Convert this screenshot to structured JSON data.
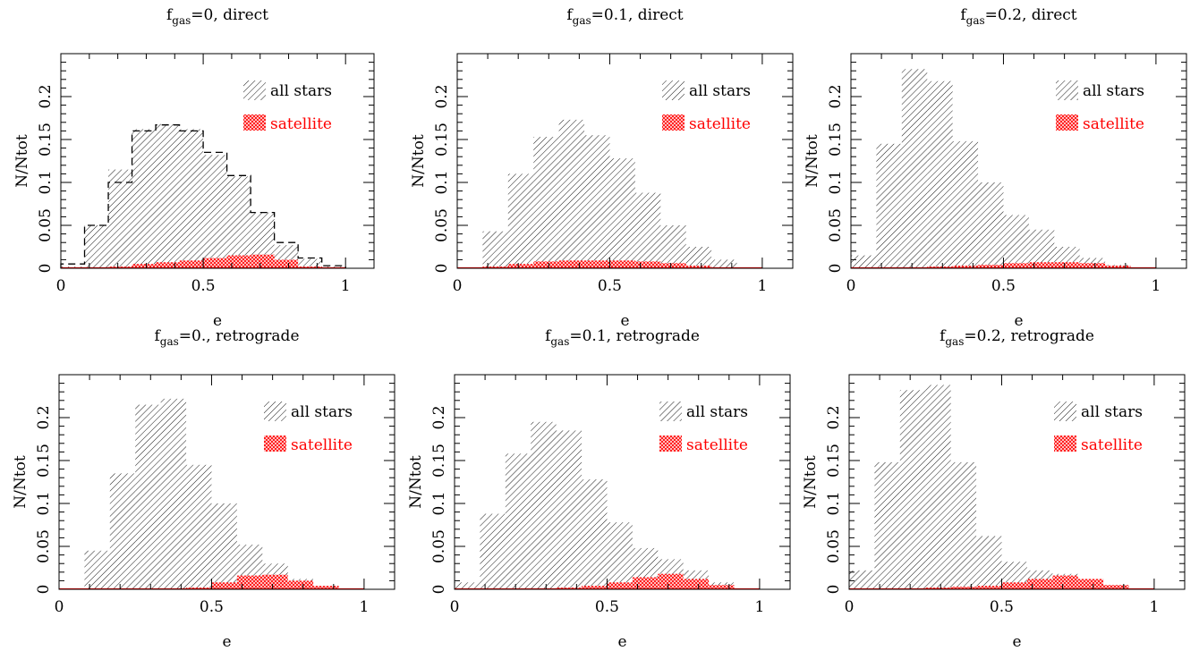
{
  "figure": {
    "colors": {
      "all_stars": "#000000",
      "satellite": "#ff0000",
      "comparison": "#000000"
    }
  },
  "chart_data": [
    {
      "type": "bar",
      "title": {
        "base": "f",
        "sub": "gas",
        "rest": "=0, direct"
      },
      "xlabel": "e",
      "ylabel": "N/Ntot",
      "xlim": [
        0,
        1.1
      ],
      "ylim": [
        0,
        0.25
      ],
      "xticks": [
        "0",
        "0.5",
        "1"
      ],
      "yticks": [
        "0",
        "0.05",
        "0.1",
        "0.15",
        "0.2"
      ],
      "bin_edges": [
        0,
        0.0833,
        0.1667,
        0.25,
        0.3333,
        0.4167,
        0.5,
        0.5833,
        0.6667,
        0.75,
        0.8333,
        0.9167,
        1.0
      ],
      "legend": {
        "position": "top-right",
        "entries": [
          "all stars",
          "satellite"
        ]
      },
      "series": [
        {
          "name": "all stars",
          "style": "hatched-histogram",
          "values": [
            0.002,
            0.05,
            0.115,
            0.162,
            0.168,
            0.162,
            0.132,
            0.107,
            0.065,
            0.027,
            0.011,
            0.002
          ]
        },
        {
          "name": "satellite",
          "style": "crosshatched-histogram",
          "values": [
            0.0,
            0.001,
            0.002,
            0.005,
            0.007,
            0.009,
            0.012,
            0.015,
            0.016,
            0.01,
            0.002,
            0.0
          ]
        },
        {
          "style": "dashed-histogram",
          "values": [
            0.005,
            0.05,
            0.1,
            0.16,
            0.167,
            0.16,
            0.135,
            0.108,
            0.065,
            0.03,
            0.012,
            0.003
          ]
        }
      ]
    },
    {
      "type": "bar",
      "title": {
        "base": "f",
        "sub": "gas",
        "rest": "=0.1, direct"
      },
      "xlabel": "e",
      "ylabel": "N/Ntot",
      "xlim": [
        0,
        1.1
      ],
      "ylim": [
        0,
        0.25
      ],
      "xticks": [
        "0",
        "0.5",
        "1"
      ],
      "yticks": [
        "0",
        "0.05",
        "0.1",
        "0.15",
        "0.2"
      ],
      "bin_edges": [
        0,
        0.0833,
        0.1667,
        0.25,
        0.3333,
        0.4167,
        0.5,
        0.5833,
        0.6667,
        0.75,
        0.8333,
        0.9167,
        1.0
      ],
      "legend": {
        "position": "top-right",
        "entries": [
          "all stars",
          "satellite"
        ]
      },
      "series": [
        {
          "name": "all stars",
          "style": "hatched-histogram",
          "values": [
            0.0,
            0.043,
            0.11,
            0.153,
            0.173,
            0.155,
            0.128,
            0.088,
            0.05,
            0.025,
            0.01,
            0.001
          ]
        },
        {
          "name": "satellite",
          "style": "crosshatched-histogram",
          "values": [
            0.0,
            0.002,
            0.005,
            0.008,
            0.009,
            0.009,
            0.009,
            0.008,
            0.006,
            0.003,
            0.001,
            0.0
          ]
        }
      ]
    },
    {
      "type": "bar",
      "title": {
        "base": "f",
        "sub": "gas",
        "rest": "=0.2, direct"
      },
      "xlabel": "e",
      "ylabel": "N/Ntot",
      "xlim": [
        0,
        1.1
      ],
      "ylim": [
        0,
        0.25
      ],
      "xticks": [
        "0",
        "0.5",
        "1"
      ],
      "yticks": [
        "0",
        "0.05",
        "0.1",
        "0.15",
        "0.2"
      ],
      "bin_edges": [
        0,
        0.0833,
        0.1667,
        0.25,
        0.3333,
        0.4167,
        0.5,
        0.5833,
        0.6667,
        0.75,
        0.8333,
        0.9167,
        1.0
      ],
      "legend": {
        "position": "top-right",
        "entries": [
          "all stars",
          "satellite"
        ]
      },
      "series": [
        {
          "name": "all stars",
          "style": "hatched-histogram",
          "values": [
            0.015,
            0.145,
            0.232,
            0.218,
            0.148,
            0.1,
            0.062,
            0.045,
            0.025,
            0.012,
            0.004,
            0.001
          ]
        },
        {
          "name": "satellite",
          "style": "crosshatched-histogram",
          "values": [
            0.0,
            0.0,
            0.001,
            0.002,
            0.003,
            0.004,
            0.006,
            0.007,
            0.007,
            0.006,
            0.003,
            0.0
          ]
        }
      ]
    },
    {
      "type": "bar",
      "title": {
        "base": "f",
        "sub": "gas",
        "rest": "=0., retrograde"
      },
      "xlabel": "e",
      "ylabel": "N/Ntot",
      "xlim": [
        0,
        1.1
      ],
      "ylim": [
        0,
        0.25
      ],
      "xticks": [
        "0",
        "0.5",
        "1"
      ],
      "yticks": [
        "0",
        "0.05",
        "0.1",
        "0.15",
        "0.2"
      ],
      "bin_edges": [
        0,
        0.0833,
        0.1667,
        0.25,
        0.3333,
        0.4167,
        0.5,
        0.5833,
        0.6667,
        0.75,
        0.8333,
        0.9167,
        1.0
      ],
      "legend": {
        "position": "top-right",
        "entries": [
          "all stars",
          "satellite"
        ]
      },
      "series": [
        {
          "name": "all stars",
          "style": "hatched-histogram",
          "values": [
            0.0,
            0.045,
            0.135,
            0.215,
            0.222,
            0.145,
            0.1,
            0.052,
            0.03,
            0.012,
            0.004,
            0.001
          ]
        },
        {
          "name": "satellite",
          "style": "crosshatched-histogram",
          "values": [
            0.0,
            0.0,
            0.0,
            0.001,
            0.001,
            0.002,
            0.008,
            0.016,
            0.017,
            0.01,
            0.004,
            0.0
          ]
        }
      ]
    },
    {
      "type": "bar",
      "title": {
        "base": "f",
        "sub": "gas",
        "rest": "=0.1, retrograde"
      },
      "xlabel": "e",
      "ylabel": "N/Ntot",
      "xlim": [
        0,
        1.1
      ],
      "ylim": [
        0,
        0.25
      ],
      "xticks": [
        "0",
        "0.5",
        "1"
      ],
      "yticks": [
        "0",
        "0.05",
        "0.1",
        "0.15",
        "0.2"
      ],
      "bin_edges": [
        0,
        0.0833,
        0.1667,
        0.25,
        0.3333,
        0.4167,
        0.5,
        0.5833,
        0.6667,
        0.75,
        0.8333,
        0.9167,
        1.0
      ],
      "legend": {
        "position": "top-right",
        "entries": [
          "all stars",
          "satellite"
        ]
      },
      "series": [
        {
          "name": "all stars",
          "style": "hatched-histogram",
          "values": [
            0.008,
            0.088,
            0.158,
            0.195,
            0.185,
            0.128,
            0.078,
            0.048,
            0.035,
            0.022,
            0.008,
            0.001
          ]
        },
        {
          "name": "satellite",
          "style": "crosshatched-histogram",
          "values": [
            0.0,
            0.0,
            0.0,
            0.001,
            0.002,
            0.004,
            0.008,
            0.014,
            0.018,
            0.012,
            0.005,
            0.0
          ]
        }
      ]
    },
    {
      "type": "bar",
      "title": {
        "base": "f",
        "sub": "gas",
        "rest": "=0.2, retrograde"
      },
      "xlabel": "e",
      "ylabel": "N/Ntot",
      "xlim": [
        0,
        1.1
      ],
      "ylim": [
        0,
        0.25
      ],
      "xticks": [
        "0",
        "0.5",
        "1"
      ],
      "yticks": [
        "0",
        "0.05",
        "0.1",
        "0.15",
        "0.2"
      ],
      "bin_edges": [
        0,
        0.0833,
        0.1667,
        0.25,
        0.3333,
        0.4167,
        0.5,
        0.5833,
        0.6667,
        0.75,
        0.8333,
        0.9167,
        1.0
      ],
      "legend": {
        "position": "top-right",
        "entries": [
          "all stars",
          "satellite"
        ]
      },
      "series": [
        {
          "name": "all stars",
          "style": "hatched-histogram",
          "values": [
            0.022,
            0.148,
            0.232,
            0.238,
            0.148,
            0.062,
            0.032,
            0.022,
            0.018,
            0.012,
            0.005,
            0.001
          ]
        },
        {
          "name": "satellite",
          "style": "crosshatched-histogram",
          "values": [
            0.0,
            0.0,
            0.001,
            0.002,
            0.003,
            0.004,
            0.008,
            0.012,
            0.016,
            0.012,
            0.005,
            0.001
          ]
        }
      ]
    }
  ]
}
